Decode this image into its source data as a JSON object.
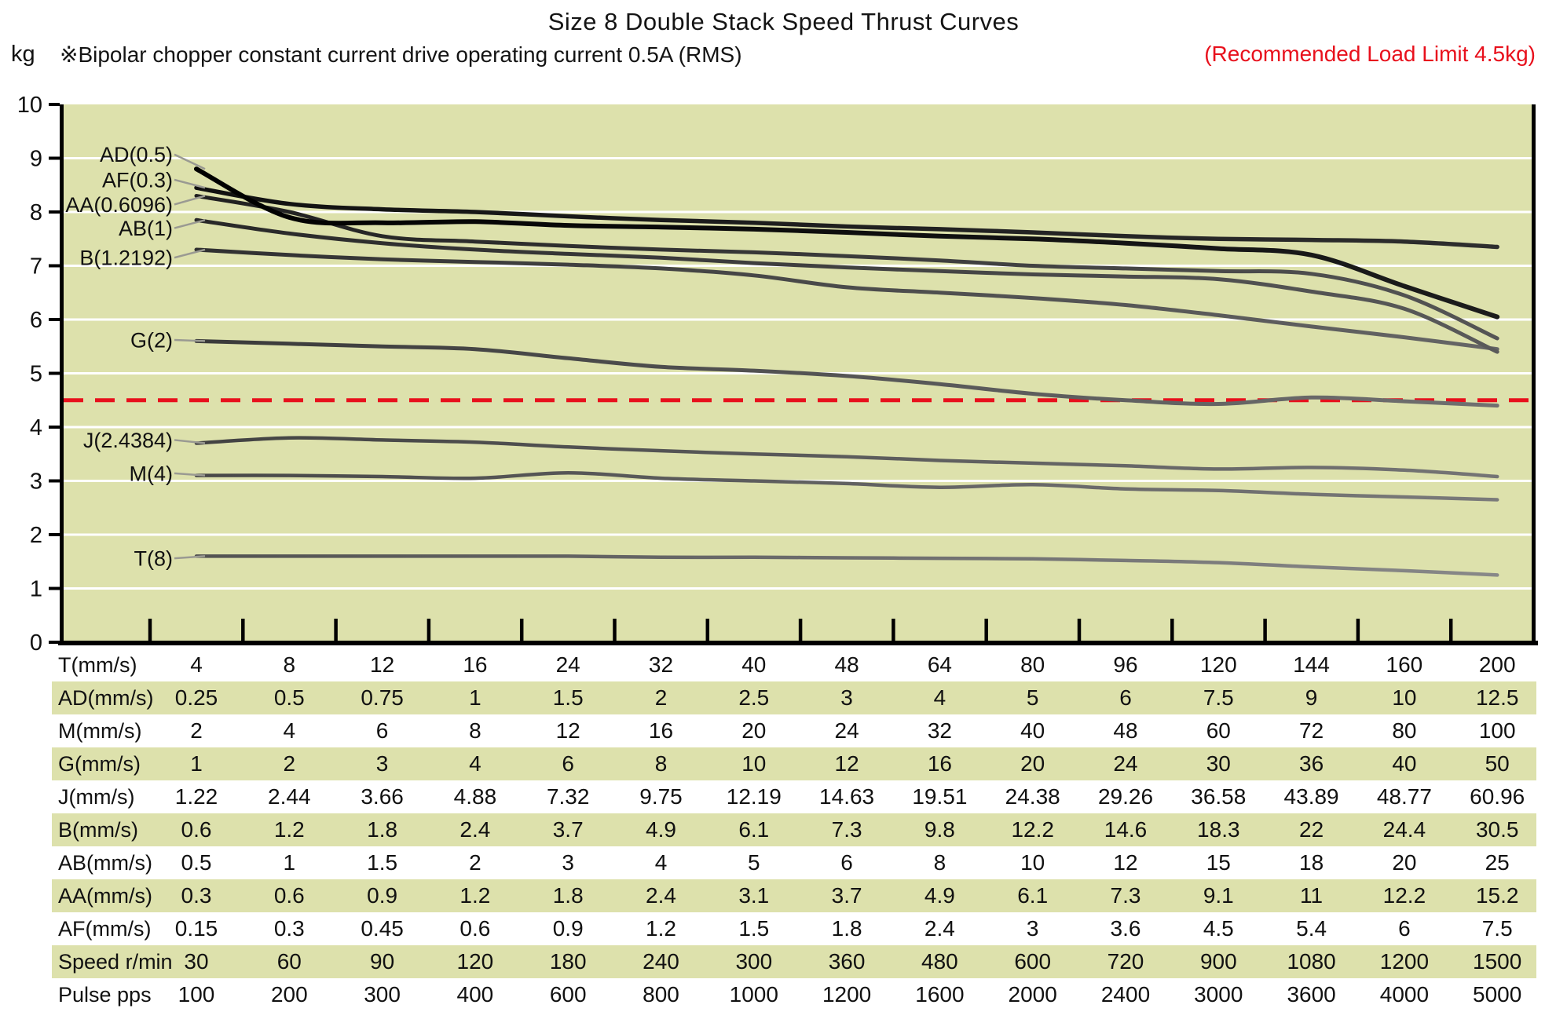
{
  "header": {
    "title": "Size 8 Double Stack Speed Thrust Curves",
    "y_unit": "kg",
    "drive_note": "※Bipolar chopper constant current drive operating current 0.5A (RMS)",
    "load_limit_note": "(Recommended Load Limit 4.5kg)"
  },
  "colors": {
    "plot_bg": "#dde1ac",
    "row_highlight": "#dde1ac",
    "limit_red": "#e8101c",
    "grid_white": "#ffffff",
    "axis_black": "#000000",
    "leader_gray": "#9a9a92"
  },
  "chart_data": {
    "type": "line",
    "title": "Size 8 Double Stack Speed Thrust Curves",
    "ylabel": "kg",
    "ylim": [
      0,
      10
    ],
    "y_ticks": [
      0,
      1,
      2,
      3,
      4,
      5,
      6,
      7,
      8,
      9,
      10
    ],
    "x_categories": [
      "4",
      "8",
      "12",
      "16",
      "24",
      "32",
      "40",
      "48",
      "64",
      "80",
      "96",
      "120",
      "144",
      "160",
      "200"
    ],
    "x_axis_label": "T(mm/s)",
    "grid": "horizontal white gridlines on khaki background, categorical x ticks",
    "legend_position": "in-plot labels at left with leader lines",
    "recommended_load_limit_kg": 4.5,
    "series": [
      {
        "name": "AD(0.5)",
        "label_kg": 9.07,
        "width": 6,
        "color": "#000000",
        "color_end": "#1c1c1c",
        "values": [
          8.8,
          7.9,
          7.8,
          7.82,
          7.75,
          7.72,
          7.68,
          7.62,
          7.55,
          7.5,
          7.42,
          7.32,
          7.2,
          6.62,
          6.05
        ]
      },
      {
        "name": "AF(0.3)",
        "label_kg": 8.6,
        "width": 5.5,
        "color": "#101010",
        "color_end": "#2e2e2e",
        "values": [
          8.45,
          8.15,
          8.05,
          8.0,
          7.92,
          7.85,
          7.8,
          7.73,
          7.68,
          7.62,
          7.55,
          7.5,
          7.48,
          7.45,
          7.35
        ]
      },
      {
        "name": "AA(0.6096)",
        "label_kg": 8.14,
        "width": 5,
        "color": "#202020",
        "color_end": "#555555",
        "values": [
          8.3,
          8.0,
          7.55,
          7.45,
          7.37,
          7.3,
          7.25,
          7.18,
          7.1,
          7.0,
          6.95,
          6.9,
          6.85,
          6.45,
          5.65
        ]
      },
      {
        "name": "AB(1)",
        "label_kg": 7.7,
        "width": 5,
        "color": "#282828",
        "color_end": "#5a5a5a",
        "values": [
          7.85,
          7.6,
          7.42,
          7.3,
          7.22,
          7.15,
          7.05,
          6.97,
          6.9,
          6.84,
          6.8,
          6.75,
          6.52,
          6.2,
          5.4
        ]
      },
      {
        "name": "B(1.2192)",
        "label_kg": 7.15,
        "width": 5,
        "color": "#303030",
        "color_end": "#666666",
        "values": [
          7.3,
          7.2,
          7.12,
          7.07,
          7.02,
          6.95,
          6.82,
          6.6,
          6.5,
          6.4,
          6.27,
          6.08,
          5.87,
          5.67,
          5.45
        ]
      },
      {
        "name": "G(2)",
        "label_kg": 5.62,
        "width": 5,
        "color": "#3a3a3a",
        "color_end": "#707070",
        "values": [
          5.6,
          5.55,
          5.5,
          5.45,
          5.28,
          5.12,
          5.05,
          4.95,
          4.8,
          4.62,
          4.5,
          4.43,
          4.55,
          4.48,
          4.4
        ]
      },
      {
        "name": "J(2.4384)",
        "label_kg": 3.76,
        "width": 4.5,
        "color": "#424242",
        "color_end": "#757575",
        "values": [
          3.7,
          3.8,
          3.76,
          3.72,
          3.63,
          3.56,
          3.5,
          3.45,
          3.38,
          3.33,
          3.28,
          3.22,
          3.25,
          3.2,
          3.08
        ]
      },
      {
        "name": "M(4)",
        "label_kg": 3.14,
        "width": 4.5,
        "color": "#484848",
        "color_end": "#7a7a7a",
        "values": [
          3.1,
          3.1,
          3.08,
          3.05,
          3.15,
          3.05,
          3.0,
          2.95,
          2.88,
          2.93,
          2.85,
          2.82,
          2.75,
          2.7,
          2.65
        ]
      },
      {
        "name": "T(8)",
        "label_kg": 1.56,
        "width": 4.5,
        "color": "#525252",
        "color_end": "#888888",
        "values": [
          1.6,
          1.6,
          1.6,
          1.6,
          1.6,
          1.58,
          1.58,
          1.57,
          1.56,
          1.55,
          1.52,
          1.48,
          1.4,
          1.33,
          1.25
        ]
      }
    ]
  },
  "table": {
    "rows": [
      {
        "label": "T(mm/s)",
        "highlight": false,
        "values": [
          "4",
          "8",
          "12",
          "16",
          "24",
          "32",
          "40",
          "48",
          "64",
          "80",
          "96",
          "120",
          "144",
          "160",
          "200"
        ]
      },
      {
        "label": "AD(mm/s)",
        "highlight": true,
        "values": [
          "0.25",
          "0.5",
          "0.75",
          "1",
          "1.5",
          "2",
          "2.5",
          "3",
          "4",
          "5",
          "6",
          "7.5",
          "9",
          "10",
          "12.5"
        ]
      },
      {
        "label": "M(mm/s)",
        "highlight": false,
        "values": [
          "2",
          "4",
          "6",
          "8",
          "12",
          "16",
          "20",
          "24",
          "32",
          "40",
          "48",
          "60",
          "72",
          "80",
          "100"
        ]
      },
      {
        "label": "G(mm/s)",
        "highlight": true,
        "values": [
          "1",
          "2",
          "3",
          "4",
          "6",
          "8",
          "10",
          "12",
          "16",
          "20",
          "24",
          "30",
          "36",
          "40",
          "50"
        ]
      },
      {
        "label": "J(mm/s)",
        "highlight": false,
        "values": [
          "1.22",
          "2.44",
          "3.66",
          "4.88",
          "7.32",
          "9.75",
          "12.19",
          "14.63",
          "19.51",
          "24.38",
          "29.26",
          "36.58",
          "43.89",
          "48.77",
          "60.96"
        ]
      },
      {
        "label": "B(mm/s)",
        "highlight": true,
        "values": [
          "0.6",
          "1.2",
          "1.8",
          "2.4",
          "3.7",
          "4.9",
          "6.1",
          "7.3",
          "9.8",
          "12.2",
          "14.6",
          "18.3",
          "22",
          "24.4",
          "30.5"
        ]
      },
      {
        "label": "AB(mm/s)",
        "highlight": false,
        "values": [
          "0.5",
          "1",
          "1.5",
          "2",
          "3",
          "4",
          "5",
          "6",
          "8",
          "10",
          "12",
          "15",
          "18",
          "20",
          "25"
        ]
      },
      {
        "label": "AA(mm/s)",
        "highlight": true,
        "values": [
          "0.3",
          "0.6",
          "0.9",
          "1.2",
          "1.8",
          "2.4",
          "3.1",
          "3.7",
          "4.9",
          "6.1",
          "7.3",
          "9.1",
          "11",
          "12.2",
          "15.2"
        ]
      },
      {
        "label": "AF(mm/s)",
        "highlight": false,
        "values": [
          "0.15",
          "0.3",
          "0.45",
          "0.6",
          "0.9",
          "1.2",
          "1.5",
          "1.8",
          "2.4",
          "3",
          "3.6",
          "4.5",
          "5.4",
          "6",
          "7.5"
        ]
      },
      {
        "label": "Speed r/min",
        "highlight": true,
        "values": [
          "30",
          "60",
          "90",
          "120",
          "180",
          "240",
          "300",
          "360",
          "480",
          "600",
          "720",
          "900",
          "1080",
          "1200",
          "1500"
        ]
      },
      {
        "label": "Pulse  pps",
        "highlight": false,
        "values": [
          "100",
          "200",
          "300",
          "400",
          "600",
          "800",
          "1000",
          "1200",
          "1600",
          "2000",
          "2400",
          "3000",
          "3600",
          "4000",
          "5000"
        ]
      }
    ]
  }
}
